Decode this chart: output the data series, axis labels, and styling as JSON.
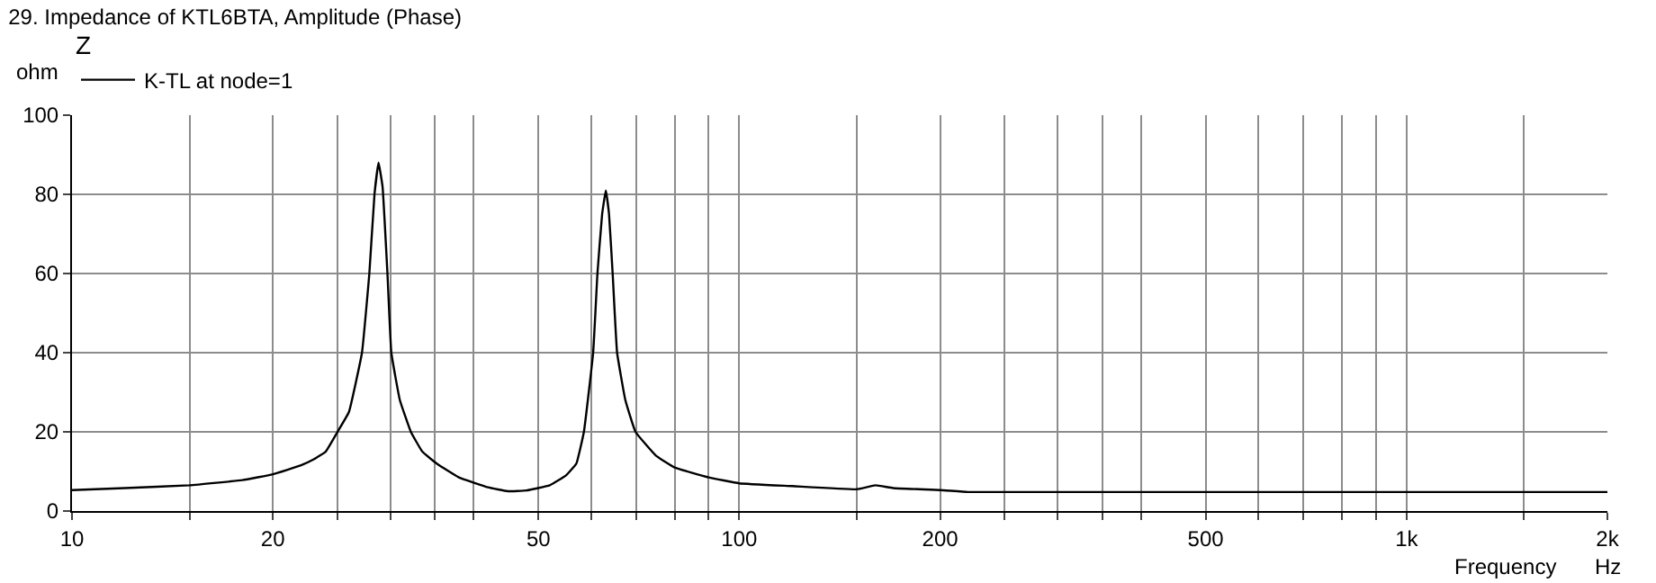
{
  "chart_data": {
    "type": "line",
    "title": "29. Impedance of KTL6BTA, Amplitude (Phase)",
    "ylabel": "ohm",
    "xlabel": "Frequency",
    "legend_title": "Z",
    "legend": "top left",
    "grid": true,
    "log": "x",
    "marker": "none",
    "line_style": "solid",
    "annotations": [
      "Hz"
    ],
    "xlim": [
      10,
      2000
    ],
    "ylim": [
      0,
      100
    ],
    "xticks": [
      10,
      {
        "value": 15,
        "label": null
      },
      20,
      {
        "value": 25,
        "label": null
      },
      {
        "value": 30,
        "label": null
      },
      {
        "value": 35,
        "label": null
      },
      {
        "value": 40,
        "label": null
      },
      50,
      {
        "value": 60,
        "label": null
      },
      {
        "value": 70,
        "label": null
      },
      {
        "value": 80,
        "label": null
      },
      {
        "value": 90,
        "label": null
      },
      100,
      {
        "value": 150,
        "label": null
      },
      200,
      {
        "value": 250,
        "label": null
      },
      {
        "value": 300,
        "label": null
      },
      {
        "value": 350,
        "label": null
      },
      {
        "value": 400,
        "label": null
      },
      500,
      {
        "value": 600,
        "label": null
      },
      {
        "value": 700,
        "label": null
      },
      {
        "value": 800,
        "label": null
      },
      {
        "value": 900,
        "label": null
      },
      {
        "value": 1000,
        "label": "1k"
      },
      {
        "value": 1500,
        "label": null
      },
      {
        "value": 2000,
        "label": "2k"
      }
    ],
    "yticks": [
      0,
      20,
      40,
      60,
      80,
      100
    ],
    "x": [
      10,
      12,
      15,
      18,
      20,
      22,
      23,
      24,
      25,
      26,
      27.2,
      27.9,
      28.4,
      28.8,
      29.2,
      29.7,
      30.1,
      31,
      32.2,
      33.5,
      35.2,
      38,
      42,
      45,
      48,
      52,
      55,
      57,
      58.5,
      60.4,
      61.3,
      62.3,
      63.1,
      63.8,
      64.6,
      65.6,
      67.5,
      69.9,
      75,
      80,
      90,
      100,
      120,
      150,
      160,
      170,
      200,
      220,
      240,
      2000
    ],
    "series": [
      {
        "name": "K-TL at node=1",
        "color": "#000000",
        "values": [
          5.3,
          5.8,
          6.5,
          7.8,
          9.3,
          11.5,
          13,
          15,
          20,
          25,
          40,
          60,
          80,
          88,
          82,
          60,
          40,
          28,
          20,
          15,
          12,
          8.5,
          6,
          5,
          5.2,
          6.5,
          9,
          12,
          20,
          40,
          60,
          75,
          81,
          75,
          60,
          40,
          28,
          20,
          14,
          11,
          8.5,
          7,
          6.3,
          5.5,
          6.5,
          5.8,
          5.3,
          4.8,
          4.8,
          4.8
        ]
      }
    ]
  }
}
